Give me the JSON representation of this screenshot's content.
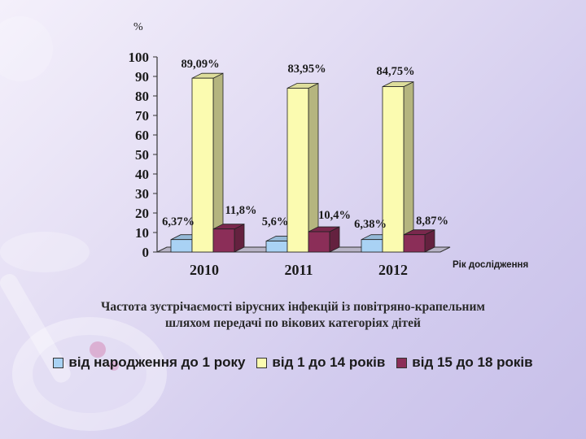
{
  "chart_data": {
    "type": "bar",
    "title": "Частота зустрічаємості вірусних інфекцій із повітряно-крапельним шляхом передачі по вікових категоріях дітей",
    "ylabel": "%",
    "xlabel": "Рік дослідження",
    "categories": [
      "2010",
      "2011",
      "2012"
    ],
    "ylim": [
      0,
      100
    ],
    "yticks": [
      "0",
      "10",
      "20",
      "30",
      "40",
      "50",
      "60",
      "70",
      "80",
      "90",
      "100"
    ],
    "series": [
      {
        "name": "від народження до 1 року",
        "color": "#a9d2f4",
        "values": [
          6.37,
          5.6,
          6.38
        ],
        "labels": [
          "6,37%",
          "5,6%",
          "6,38%"
        ]
      },
      {
        "name": "від 1 до 14 років",
        "color": "#fbfbb0",
        "values": [
          89.09,
          83.95,
          84.75
        ],
        "labels": [
          "89,09%",
          "83,95%",
          "84,75%"
        ]
      },
      {
        "name": "від 15 до 18 років",
        "color": "#8b2e58",
        "values": [
          11.8,
          10.4,
          8.87
        ],
        "labels": [
          "11,8%",
          "10,4%",
          "8,87%"
        ]
      }
    ],
    "grid": false,
    "legend": "bottom"
  },
  "caption_line1": "Частота зустрічаємості вірусних інфекцій із повітряно-крапельним",
  "caption_line2": "шляхом передачі по вікових категоріях дітей"
}
